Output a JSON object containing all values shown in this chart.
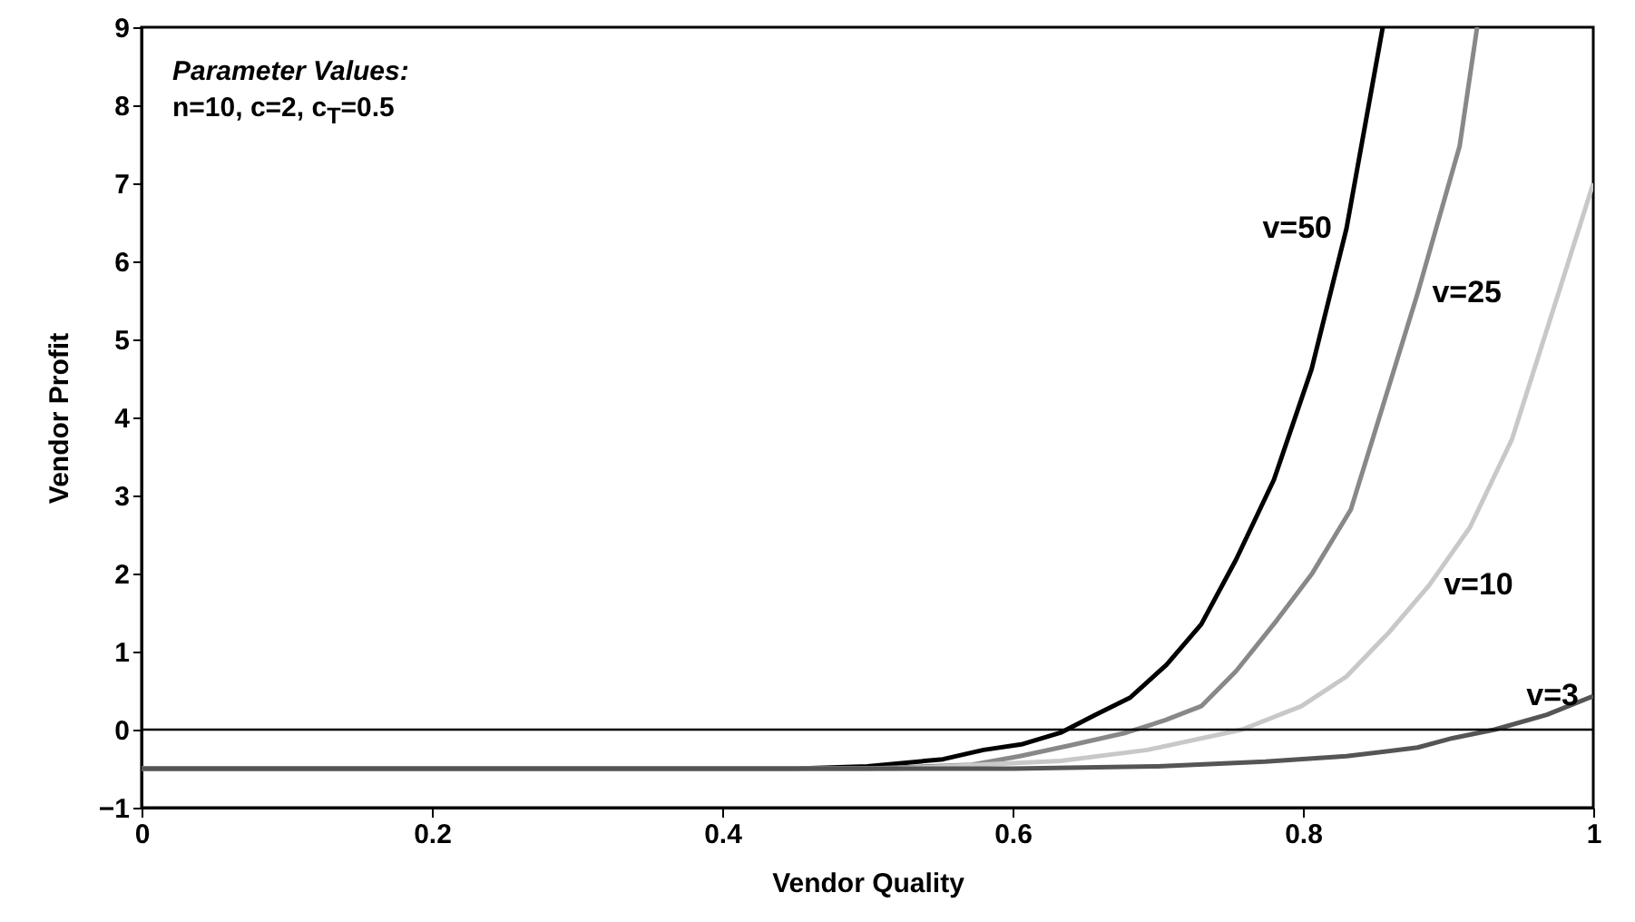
{
  "chart_data": {
    "type": "line",
    "xlabel": "Vendor Quality",
    "ylabel": "Vendor Profit",
    "xlim": [
      0,
      1
    ],
    "ylim": [
      -1,
      9
    ],
    "xticks": [
      0,
      0.2,
      0.4,
      0.6,
      0.8,
      1
    ],
    "yticks": [
      -1,
      0,
      1,
      2,
      3,
      4,
      5,
      6,
      7,
      8,
      9
    ],
    "ref_lines": [
      {
        "axis": "y",
        "value": 0,
        "color": "#000000"
      }
    ],
    "annotations": [
      "Parameter Values:",
      "n=10, c=2, c$_{T}$=0.5"
    ],
    "series": [
      {
        "name": "v=50",
        "color": "#000000",
        "x": [
          0,
          0.45,
          0.5,
          0.552,
          0.58,
          0.606,
          0.633,
          0.657,
          0.681,
          0.706,
          0.73,
          0.754,
          0.78,
          0.806,
          0.83,
          0.855
        ],
        "values": [
          -0.5,
          -0.5,
          -0.47,
          -0.38,
          -0.26,
          -0.19,
          -0.04,
          0.19,
          0.41,
          0.83,
          1.35,
          2.18,
          3.2,
          4.62,
          6.42,
          9.0
        ]
      },
      {
        "name": "v=25",
        "color": "#888888",
        "x": [
          0,
          0.5,
          0.572,
          0.605,
          0.64,
          0.678,
          0.705,
          0.73,
          0.754,
          0.782,
          0.806,
          0.833,
          0.848,
          0.879,
          0.908,
          0.92
        ],
        "values": [
          -0.5,
          -0.5,
          -0.45,
          -0.34,
          -0.2,
          -0.04,
          0.12,
          0.3,
          0.75,
          1.4,
          1.99,
          2.82,
          3.72,
          5.59,
          7.48,
          9.0
        ]
      },
      {
        "name": "v=10",
        "color": "#c8c8c8",
        "x": [
          0,
          0.52,
          0.633,
          0.693,
          0.758,
          0.799,
          0.83,
          0.859,
          0.887,
          0.915,
          0.944,
          0.976,
          1.0
        ],
        "values": [
          -0.5,
          -0.5,
          -0.4,
          -0.26,
          0,
          0.3,
          0.68,
          1.24,
          1.85,
          2.59,
          3.72,
          5.59,
          7.0
        ]
      },
      {
        "name": "v=3",
        "color": "#555555",
        "x": [
          0,
          0.6,
          0.7,
          0.774,
          0.83,
          0.879,
          0.903,
          0.932,
          0.968,
          1.0
        ],
        "values": [
          -0.5,
          -0.5,
          -0.47,
          -0.41,
          -0.34,
          -0.23,
          -0.11,
          0,
          0.19,
          0.43
        ]
      }
    ]
  }
}
